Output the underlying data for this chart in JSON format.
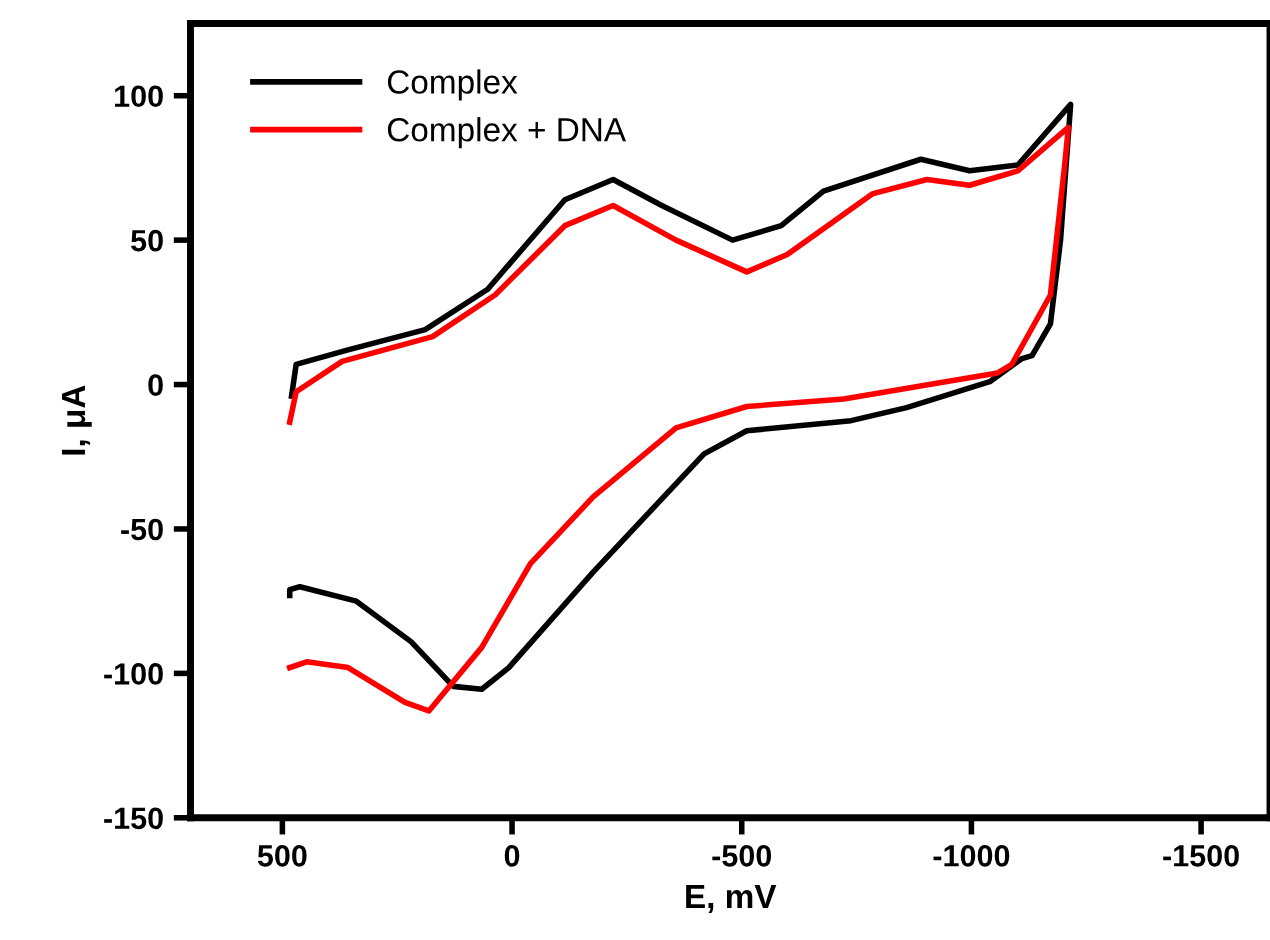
{
  "chart_data": {
    "type": "line",
    "xlabel": "E, mV",
    "ylabel": "I, μA",
    "xlim": [
      700,
      -1650
    ],
    "xticks": [
      500,
      0,
      -500,
      -1000,
      -1500
    ],
    "ylim": [
      -150,
      125
    ],
    "yticks": [
      -150,
      -100,
      -50,
      0,
      50,
      100
    ],
    "grid": false,
    "legend": "top left",
    "marker": "none",
    "line_style": "solid",
    "series": [
      {
        "name": "Complex",
        "color": "#000000",
        "x": [
          480,
          470,
          357,
          189,
          53,
          -115,
          -220,
          -326,
          -480,
          -586,
          -678,
          -890,
          -996,
          -1101,
          -1216,
          -1194,
          -1172,
          -1132,
          -1110,
          -1040,
          -859,
          -738,
          -511,
          -418,
          -176,
          7,
          66,
          128,
          220,
          339,
          462,
          484,
          484
        ],
        "values": [
          -4,
          7,
          12,
          19,
          33,
          64,
          71,
          62,
          50,
          55,
          67,
          78,
          74,
          76,
          97,
          50,
          21,
          10,
          9,
          1,
          -8,
          -12.5,
          -16,
          -24,
          -65,
          -98,
          -105.5,
          -104.5,
          -89,
          -75,
          -70,
          -71,
          -73
        ]
      },
      {
        "name": "Complex + DNA",
        "color": "#ff0000",
        "x": [
          484,
          470,
          370,
          173,
          37,
          -115,
          -220,
          -357,
          -511,
          -599,
          -784,
          -903,
          -996,
          -1101,
          -1211,
          -1203,
          -1172,
          -1088,
          -1057,
          -934,
          -722,
          -511,
          -357,
          -176,
          -40,
          66,
          181,
          233,
          357,
          447,
          484
        ],
        "values": [
          -13,
          -2.5,
          8,
          16.6,
          31,
          55,
          62,
          50,
          39,
          45,
          66,
          71,
          69,
          74,
          89,
          76,
          31,
          7,
          4,
          0.7,
          -5,
          -7.6,
          -15,
          -39,
          -62,
          -91,
          -113,
          -110,
          -98,
          -96,
          -98
        ]
      }
    ]
  }
}
